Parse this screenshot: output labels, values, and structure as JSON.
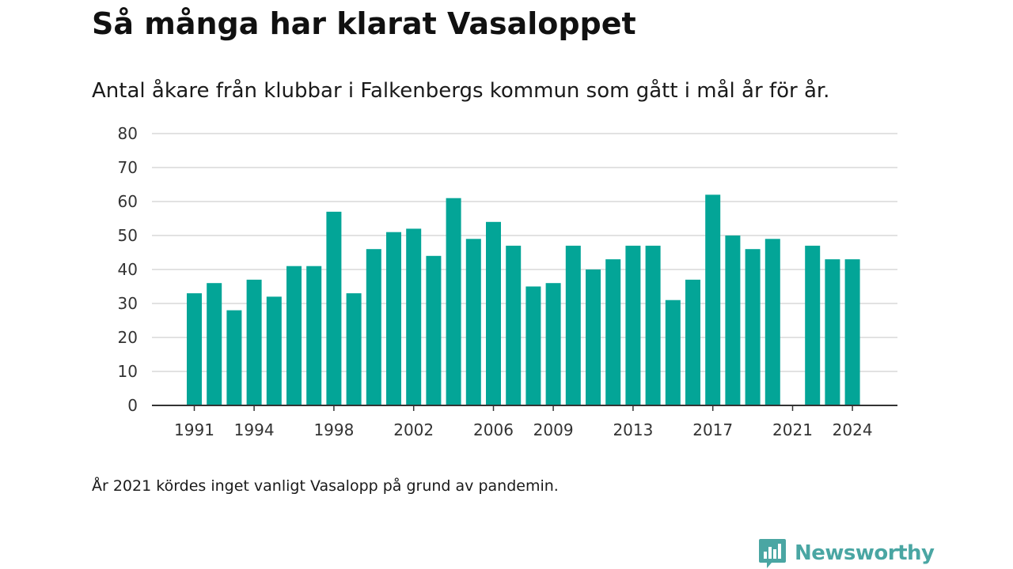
{
  "chart_data": {
    "type": "bar",
    "title": "Så många har klarat Vasaloppet",
    "subtitle": "Antal åkare från klubbar i Falkenbergs kommun som gått i mål år för år.",
    "x": [
      1991,
      1992,
      1993,
      1994,
      1995,
      1996,
      1997,
      1998,
      1999,
      2000,
      2001,
      2002,
      2003,
      2004,
      2005,
      2006,
      2007,
      2008,
      2009,
      2010,
      2011,
      2012,
      2013,
      2014,
      2015,
      2016,
      2017,
      2018,
      2019,
      2020,
      2021,
      2022,
      2023,
      2024
    ],
    "values": [
      33,
      36,
      28,
      37,
      32,
      41,
      41,
      57,
      33,
      46,
      51,
      52,
      44,
      61,
      49,
      54,
      47,
      35,
      36,
      47,
      40,
      43,
      47,
      47,
      31,
      37,
      62,
      50,
      46,
      49,
      null,
      47,
      43,
      43
    ],
    "x_tick_labels": [
      "1991",
      "1994",
      "1998",
      "2002",
      "2006",
      "2009",
      "2013",
      "2017",
      "2021",
      "2024"
    ],
    "y_tick_labels": [
      "0",
      "10",
      "20",
      "30",
      "40",
      "50",
      "60",
      "70",
      "80"
    ],
    "ylim": [
      0,
      80
    ],
    "grid": true,
    "bar_color": "#03a597",
    "footnote": "År 2021 kördes inget vanligt Vasalopp på grund av pandemin."
  },
  "brand": {
    "name": "Newsworthy",
    "color": "#4aa6a3",
    "icon": "bar-chart-speech-bubble-icon"
  }
}
